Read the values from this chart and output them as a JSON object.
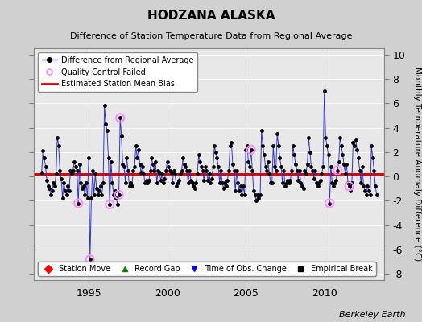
{
  "title": "HODZANA ALASKA",
  "subtitle": "Difference of Station Temperature Data from Regional Average",
  "ylabel": "Monthly Temperature Anomaly Difference (°C)",
  "bias": 0.15,
  "ylim": [
    -8.5,
    10.5
  ],
  "xlim": [
    1991.5,
    2013.8
  ],
  "xticks": [
    1995,
    2000,
    2005,
    2010
  ],
  "yticks": [
    -8,
    -6,
    -4,
    -2,
    0,
    2,
    4,
    6,
    8,
    10
  ],
  "bg_color": "#d0d0d0",
  "plot_bg": "#e8e8e8",
  "line_color": "#3333cc",
  "bias_color": "#dd0000",
  "marker_color": "#000000",
  "qc_color": "#ff88ff",
  "watermark": "Berkeley Earth",
  "time_series": [
    [
      1992.0,
      0.3
    ],
    [
      1992.083,
      2.1
    ],
    [
      1992.167,
      1.5
    ],
    [
      1992.25,
      0.8
    ],
    [
      1992.333,
      -0.3
    ],
    [
      1992.417,
      -0.8
    ],
    [
      1992.5,
      -1.0
    ],
    [
      1992.583,
      -1.5
    ],
    [
      1992.667,
      -1.2
    ],
    [
      1992.75,
      -0.5
    ],
    [
      1992.833,
      -0.8
    ],
    [
      1992.917,
      0.2
    ],
    [
      1993.0,
      3.2
    ],
    [
      1993.083,
      2.5
    ],
    [
      1993.167,
      0.5
    ],
    [
      1993.25,
      -0.2
    ],
    [
      1993.333,
      -1.8
    ],
    [
      1993.417,
      -0.5
    ],
    [
      1993.5,
      -1.2
    ],
    [
      1993.583,
      -1.5
    ],
    [
      1993.667,
      -0.8
    ],
    [
      1993.75,
      -1.2
    ],
    [
      1993.833,
      0.5
    ],
    [
      1993.917,
      0.2
    ],
    [
      1994.0,
      0.5
    ],
    [
      1994.083,
      1.2
    ],
    [
      1994.167,
      0.8
    ],
    [
      1994.25,
      0.5
    ],
    [
      1994.333,
      -2.2
    ],
    [
      1994.417,
      1.0
    ],
    [
      1994.5,
      -0.5
    ],
    [
      1994.583,
      -1.0
    ],
    [
      1994.667,
      -0.8
    ],
    [
      1994.75,
      -1.5
    ],
    [
      1994.833,
      -0.5
    ],
    [
      1994.917,
      -1.8
    ],
    [
      1995.0,
      1.5
    ],
    [
      1995.083,
      -6.8
    ],
    [
      1995.167,
      -1.8
    ],
    [
      1995.25,
      0.5
    ],
    [
      1995.333,
      -1.5
    ],
    [
      1995.417,
      0.2
    ],
    [
      1995.5,
      -1.0
    ],
    [
      1995.583,
      -1.5
    ],
    [
      1995.667,
      -1.2
    ],
    [
      1995.75,
      -0.8
    ],
    [
      1995.833,
      -1.5
    ],
    [
      1995.917,
      -0.5
    ],
    [
      1996.0,
      5.8
    ],
    [
      1996.083,
      4.3
    ],
    [
      1996.167,
      3.8
    ],
    [
      1996.25,
      1.5
    ],
    [
      1996.333,
      -2.3
    ],
    [
      1996.417,
      1.2
    ],
    [
      1996.5,
      -0.5
    ],
    [
      1996.583,
      -1.5
    ],
    [
      1996.667,
      -1.2
    ],
    [
      1996.75,
      -1.8
    ],
    [
      1996.833,
      -2.3
    ],
    [
      1996.917,
      -1.5
    ],
    [
      1997.0,
      4.8
    ],
    [
      1997.083,
      3.3
    ],
    [
      1997.167,
      1.0
    ],
    [
      1997.25,
      0.8
    ],
    [
      1997.333,
      -0.5
    ],
    [
      1997.417,
      1.5
    ],
    [
      1997.5,
      0.5
    ],
    [
      1997.583,
      -0.8
    ],
    [
      1997.667,
      -0.5
    ],
    [
      1997.75,
      -0.8
    ],
    [
      1997.833,
      0.5
    ],
    [
      1997.917,
      0.8
    ],
    [
      1998.0,
      2.5
    ],
    [
      1998.083,
      1.5
    ],
    [
      1998.167,
      2.2
    ],
    [
      1998.25,
      1.0
    ],
    [
      1998.333,
      0.3
    ],
    [
      1998.417,
      0.8
    ],
    [
      1998.5,
      0.2
    ],
    [
      1998.583,
      -0.5
    ],
    [
      1998.667,
      -0.3
    ],
    [
      1998.75,
      -0.5
    ],
    [
      1998.833,
      -0.3
    ],
    [
      1998.917,
      0.5
    ],
    [
      1999.0,
      1.5
    ],
    [
      1999.083,
      1.0
    ],
    [
      1999.167,
      0.5
    ],
    [
      1999.25,
      1.2
    ],
    [
      1999.333,
      -0.5
    ],
    [
      1999.417,
      0.5
    ],
    [
      1999.5,
      0.3
    ],
    [
      1999.583,
      -0.3
    ],
    [
      1999.667,
      0.2
    ],
    [
      1999.75,
      -0.5
    ],
    [
      1999.833,
      -0.2
    ],
    [
      1999.917,
      0.5
    ],
    [
      2000.0,
      1.2
    ],
    [
      2000.083,
      0.8
    ],
    [
      2000.167,
      0.5
    ],
    [
      2000.25,
      0.3
    ],
    [
      2000.333,
      -0.5
    ],
    [
      2000.417,
      0.5
    ],
    [
      2000.5,
      0.2
    ],
    [
      2000.583,
      -0.8
    ],
    [
      2000.667,
      -0.5
    ],
    [
      2000.75,
      -0.3
    ],
    [
      2000.833,
      0.2
    ],
    [
      2000.917,
      0.5
    ],
    [
      2001.0,
      1.5
    ],
    [
      2001.083,
      1.0
    ],
    [
      2001.167,
      0.8
    ],
    [
      2001.25,
      0.5
    ],
    [
      2001.333,
      -0.5
    ],
    [
      2001.417,
      0.5
    ],
    [
      2001.5,
      -0.3
    ],
    [
      2001.583,
      -0.5
    ],
    [
      2001.667,
      -0.8
    ],
    [
      2001.75,
      -1.0
    ],
    [
      2001.833,
      -0.5
    ],
    [
      2001.917,
      0.2
    ],
    [
      2002.0,
      1.8
    ],
    [
      2002.083,
      1.2
    ],
    [
      2002.167,
      0.8
    ],
    [
      2002.25,
      0.5
    ],
    [
      2002.333,
      -0.3
    ],
    [
      2002.417,
      0.8
    ],
    [
      2002.5,
      0.5
    ],
    [
      2002.583,
      -0.3
    ],
    [
      2002.667,
      0.2
    ],
    [
      2002.75,
      -0.5
    ],
    [
      2002.833,
      -0.2
    ],
    [
      2002.917,
      0.8
    ],
    [
      2003.0,
      2.5
    ],
    [
      2003.083,
      2.0
    ],
    [
      2003.167,
      1.5
    ],
    [
      2003.25,
      0.8
    ],
    [
      2003.333,
      -0.5
    ],
    [
      2003.417,
      0.5
    ],
    [
      2003.5,
      -0.5
    ],
    [
      2003.583,
      -1.0
    ],
    [
      2003.667,
      -0.5
    ],
    [
      2003.75,
      -0.8
    ],
    [
      2003.833,
      -0.3
    ],
    [
      2003.917,
      0.5
    ],
    [
      2004.0,
      2.5
    ],
    [
      2004.083,
      2.8
    ],
    [
      2004.167,
      1.0
    ],
    [
      2004.25,
      0.5
    ],
    [
      2004.333,
      -1.2
    ],
    [
      2004.417,
      0.5
    ],
    [
      2004.5,
      -0.5
    ],
    [
      2004.583,
      -1.2
    ],
    [
      2004.667,
      -0.8
    ],
    [
      2004.75,
      -1.5
    ],
    [
      2004.833,
      -0.8
    ],
    [
      2004.917,
      -1.5
    ],
    [
      2005.0,
      2.2
    ],
    [
      2005.083,
      2.5
    ],
    [
      2005.167,
      1.2
    ],
    [
      2005.25,
      0.8
    ],
    [
      2005.333,
      2.2
    ],
    [
      2005.417,
      0.5
    ],
    [
      2005.5,
      -1.2
    ],
    [
      2005.583,
      -1.5
    ],
    [
      2005.667,
      -2.0
    ],
    [
      2005.75,
      -1.5
    ],
    [
      2005.833,
      -1.8
    ],
    [
      2005.917,
      -1.5
    ],
    [
      2006.0,
      3.8
    ],
    [
      2006.083,
      2.5
    ],
    [
      2006.167,
      1.8
    ],
    [
      2006.25,
      0.8
    ],
    [
      2006.333,
      0.5
    ],
    [
      2006.417,
      1.2
    ],
    [
      2006.5,
      0.2
    ],
    [
      2006.583,
      -0.5
    ],
    [
      2006.667,
      -0.5
    ],
    [
      2006.75,
      2.5
    ],
    [
      2006.833,
      0.8
    ],
    [
      2006.917,
      0.5
    ],
    [
      2007.0,
      3.5
    ],
    [
      2007.083,
      2.5
    ],
    [
      2007.167,
      1.5
    ],
    [
      2007.25,
      0.8
    ],
    [
      2007.333,
      -0.5
    ],
    [
      2007.417,
      0.5
    ],
    [
      2007.5,
      -0.8
    ],
    [
      2007.583,
      -0.5
    ],
    [
      2007.667,
      -0.3
    ],
    [
      2007.75,
      -0.5
    ],
    [
      2007.833,
      -0.3
    ],
    [
      2007.917,
      0.5
    ],
    [
      2008.0,
      2.5
    ],
    [
      2008.083,
      1.8
    ],
    [
      2008.167,
      1.0
    ],
    [
      2008.25,
      0.5
    ],
    [
      2008.333,
      -0.3
    ],
    [
      2008.417,
      0.5
    ],
    [
      2008.5,
      -0.5
    ],
    [
      2008.583,
      -0.8
    ],
    [
      2008.667,
      -1.0
    ],
    [
      2008.75,
      0.5
    ],
    [
      2008.833,
      0.2
    ],
    [
      2008.917,
      1.0
    ],
    [
      2009.0,
      3.2
    ],
    [
      2009.083,
      2.0
    ],
    [
      2009.167,
      0.8
    ],
    [
      2009.25,
      0.5
    ],
    [
      2009.333,
      -0.2
    ],
    [
      2009.417,
      0.5
    ],
    [
      2009.5,
      -0.5
    ],
    [
      2009.583,
      -0.8
    ],
    [
      2009.667,
      -0.5
    ],
    [
      2009.75,
      -0.3
    ],
    [
      2009.833,
      0.2
    ],
    [
      2009.917,
      0.8
    ],
    [
      2010.0,
      7.0
    ],
    [
      2010.083,
      3.2
    ],
    [
      2010.167,
      2.5
    ],
    [
      2010.25,
      1.8
    ],
    [
      2010.333,
      -2.2
    ],
    [
      2010.417,
      0.8
    ],
    [
      2010.5,
      -0.5
    ],
    [
      2010.583,
      -0.8
    ],
    [
      2010.667,
      -0.5
    ],
    [
      2010.75,
      -0.3
    ],
    [
      2010.833,
      0.5
    ],
    [
      2010.917,
      1.2
    ],
    [
      2011.0,
      3.2
    ],
    [
      2011.083,
      2.5
    ],
    [
      2011.167,
      1.8
    ],
    [
      2011.25,
      1.0
    ],
    [
      2011.333,
      0.2
    ],
    [
      2011.417,
      1.0
    ],
    [
      2011.5,
      -0.5
    ],
    [
      2011.583,
      -0.8
    ],
    [
      2011.667,
      -1.2
    ],
    [
      2011.75,
      -0.5
    ],
    [
      2011.833,
      2.8
    ],
    [
      2011.917,
      2.5
    ],
    [
      2012.0,
      3.0
    ],
    [
      2012.083,
      2.2
    ],
    [
      2012.167,
      1.5
    ],
    [
      2012.25,
      0.5
    ],
    [
      2012.333,
      -0.5
    ],
    [
      2012.417,
      0.8
    ],
    [
      2012.5,
      -0.8
    ],
    [
      2012.583,
      -1.2
    ],
    [
      2012.667,
      -1.5
    ],
    [
      2012.75,
      -0.8
    ],
    [
      2012.833,
      -1.2
    ],
    [
      2012.917,
      -1.5
    ],
    [
      2013.0,
      2.5
    ],
    [
      2013.083,
      1.5
    ],
    [
      2013.167,
      0.5
    ],
    [
      2013.25,
      -0.8
    ],
    [
      2013.333,
      -1.5
    ]
  ],
  "qc_failed": [
    1994.333,
    1995.083,
    1996.333,
    1996.917,
    1997.0,
    2005.333,
    2010.333,
    2010.833,
    2011.583
  ]
}
